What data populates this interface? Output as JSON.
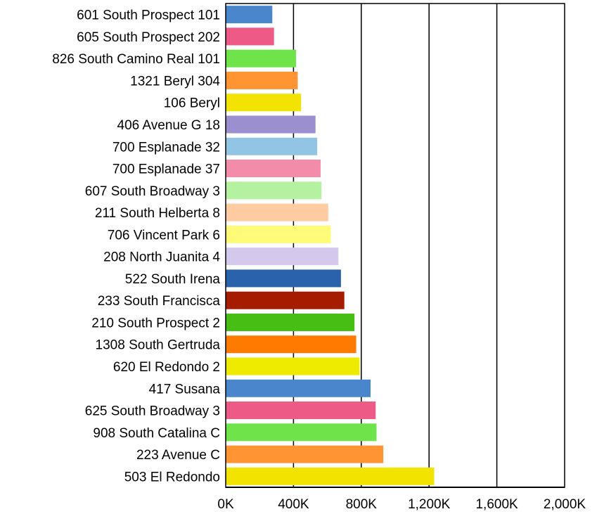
{
  "chart_data": {
    "type": "bar",
    "orientation": "horizontal",
    "categories": [
      "601 South Prospect 101",
      "605 South Prospect 202",
      "826 South Camino Real 101",
      "1321 Beryl 304",
      "106 Beryl",
      "406 Avenue G 18",
      "700 Esplanade 32",
      "700 Esplanade 37",
      "607 South Broadway 3",
      "211 South Helberta 8",
      "706 Vincent Park 6",
      "208 North Juanita 4",
      "522 South Irena",
      "233 South Francisca",
      "210 South Prospect 2",
      "1308 South Gertruda",
      "620 El Redondo 2",
      "417 Susana",
      "625 South Broadway 3",
      "908 South Catalina C",
      "223 Avenue C",
      "503 El Redondo"
    ],
    "values": [
      275000,
      285000,
      415000,
      425000,
      445000,
      530000,
      540000,
      560000,
      565000,
      605000,
      620000,
      665000,
      680000,
      700000,
      760000,
      770000,
      790000,
      855000,
      885000,
      890000,
      930000,
      1230000
    ],
    "colors": [
      "#4a86cc",
      "#ee5a86",
      "#6ee44a",
      "#ff9433",
      "#f2e300",
      "#9b8fd0",
      "#92c4e4",
      "#f28ca8",
      "#b4f2a0",
      "#ffcba0",
      "#fffa78",
      "#d4c8ec",
      "#2a62ac",
      "#a61c00",
      "#46be14",
      "#ff7a00",
      "#eeea00",
      "#4a86cc",
      "#ee5a86",
      "#6ee44a",
      "#ff9433",
      "#f2e300"
    ],
    "xticks": [
      "0K",
      "400K",
      "800K",
      "1,200K",
      "1,600K",
      "2,000K"
    ],
    "xlim": [
      0,
      2000000
    ],
    "grid": true,
    "title": "",
    "xlabel": "",
    "ylabel": ""
  }
}
